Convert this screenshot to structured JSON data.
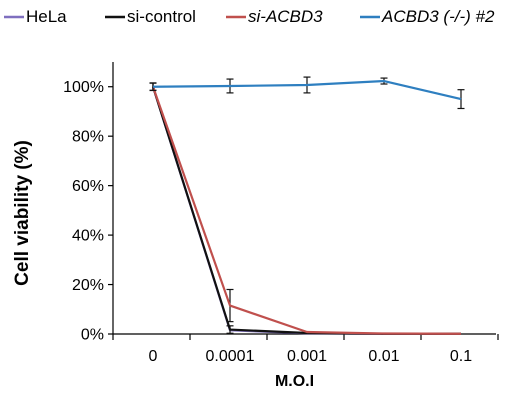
{
  "chart_data": {
    "type": "line",
    "title": "",
    "xlabel": "M.O.I",
    "ylabel": "Cell viability (%)",
    "categories": [
      "0",
      "0.0001",
      "0.001",
      "0.01",
      "0.1"
    ],
    "ylim": [
      0,
      110
    ],
    "yticks": [
      {
        "value": 0,
        "label": "0%"
      },
      {
        "value": 20,
        "label": "20%"
      },
      {
        "value": 40,
        "label": "40%"
      },
      {
        "value": 60,
        "label": "60%"
      },
      {
        "value": 80,
        "label": "80%"
      },
      {
        "value": 100,
        "label": "100%"
      }
    ],
    "grid": false,
    "legend_position": "top",
    "series": [
      {
        "name": "HeLa",
        "color": "#7f6fbf",
        "italic": false,
        "values": [
          100,
          1.5,
          0.3,
          0.1,
          0.1
        ],
        "errors": [
          null,
          null,
          null,
          null,
          null
        ]
      },
      {
        "name": "si-control",
        "color": "#111111",
        "italic": false,
        "values": [
          100,
          1.8,
          0.4,
          0.1,
          0.1
        ],
        "errors": [
          1.5,
          1.5,
          null,
          null,
          null
        ]
      },
      {
        "name": "si-ACBD3",
        "color": "#c0504d",
        "italic": true,
        "values": [
          100,
          11.5,
          0.8,
          0.2,
          0.1
        ],
        "errors": [
          1.5,
          6.5,
          null,
          null,
          null
        ]
      },
      {
        "name": "ACBD3 (-/-) #2",
        "color": "#2e7fc0",
        "italic": true,
        "values": [
          100,
          100.3,
          100.7,
          102.3,
          95
        ],
        "errors": [
          1.5,
          2.8,
          3.2,
          1.2,
          3.8
        ]
      }
    ]
  }
}
